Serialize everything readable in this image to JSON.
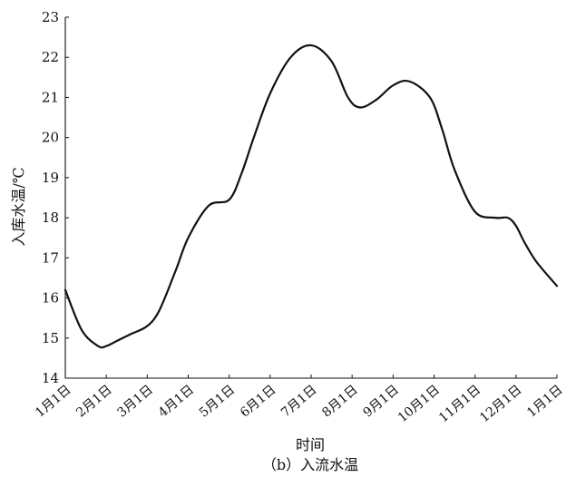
{
  "chart_data": {
    "type": "line",
    "title": "",
    "caption": "（b）入流水温",
    "xlabel": "时间",
    "ylabel": "入库水温/℃",
    "ylim": [
      14,
      23
    ],
    "yticks": [
      "14",
      "15",
      "16",
      "17",
      "18",
      "19",
      "20",
      "21",
      "22",
      "23"
    ],
    "categories": [
      "1月1日",
      "2月1日",
      "3月1日",
      "4月1日",
      "5月1日",
      "6月1日",
      "7月1日",
      "8月1日",
      "9月1日",
      "10月1日",
      "11月1日",
      "12月1日",
      "1月1日"
    ],
    "grid": false,
    "series": [
      {
        "x": [
          0,
          0.4,
          0.8,
          1.0,
          1.3,
          1.6,
          2.0,
          2.3,
          2.7,
          3.0,
          3.5,
          4.0,
          4.3,
          4.6,
          5.0,
          5.5,
          6.0,
          6.5,
          6.9,
          7.2,
          7.6,
          8.0,
          8.4,
          8.9,
          9.2,
          9.5,
          10.0,
          10.5,
          10.8,
          11.0,
          11.2,
          11.5,
          12.0
        ],
        "values": [
          16.2,
          15.2,
          14.8,
          14.8,
          14.95,
          15.1,
          15.3,
          15.7,
          16.7,
          17.5,
          18.3,
          18.45,
          19.1,
          20.0,
          21.1,
          22.0,
          22.3,
          21.9,
          21.0,
          20.75,
          20.95,
          21.3,
          21.4,
          21.0,
          20.2,
          19.2,
          18.15,
          18.0,
          18.0,
          17.8,
          17.4,
          16.9,
          16.3
        ]
      }
    ]
  }
}
